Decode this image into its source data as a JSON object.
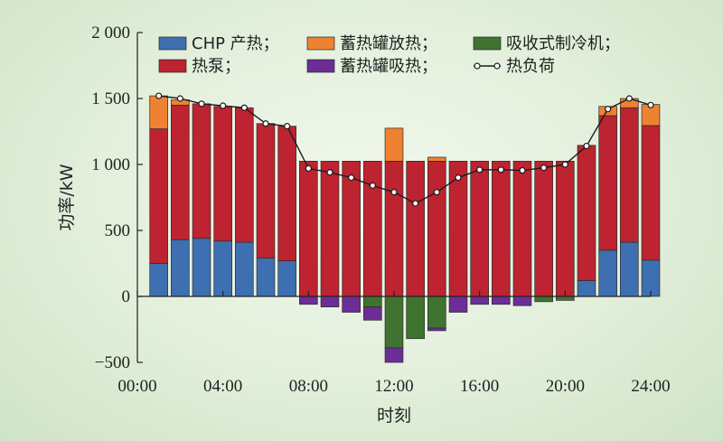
{
  "chart_data": {
    "type": "bar",
    "subtype": "stacked bar with line overlay",
    "xlabel": "时刻",
    "ylabel": "功率/kW",
    "ylim": [
      -500,
      2000
    ],
    "yticks": [
      -500,
      0,
      500,
      1000,
      1500,
      2000
    ],
    "ytick_labels": [
      "−500",
      "0",
      "500",
      "1 000",
      "1 500",
      "2 000"
    ],
    "xlim": [
      0,
      24
    ],
    "xticks": [
      0,
      4,
      8,
      12,
      16,
      20,
      24
    ],
    "xtick_labels": [
      "00:00",
      "04:00",
      "08:00",
      "12:00",
      "16:00",
      "20:00",
      "24:00"
    ],
    "grid": false,
    "legend_position": "top",
    "x": [
      1,
      2,
      3,
      4,
      5,
      6,
      7,
      8,
      9,
      10,
      11,
      12,
      13,
      14,
      15,
      16,
      17,
      18,
      19,
      20,
      21,
      22,
      23,
      24
    ],
    "series": [
      {
        "name": "CHP 产热",
        "color": "#3e6fb0",
        "values": [
          250,
          430,
          440,
          420,
          410,
          290,
          270,
          0,
          0,
          0,
          0,
          0,
          0,
          0,
          0,
          0,
          0,
          0,
          0,
          0,
          120,
          350,
          410,
          275
        ]
      },
      {
        "name": "热泵",
        "color": "#bd2330",
        "values": [
          1020,
          1020,
          1020,
          1020,
          1020,
          1020,
          1020,
          1025,
          1025,
          1025,
          1025,
          1025,
          1025,
          1025,
          1025,
          1025,
          1025,
          1025,
          1025,
          1025,
          1025,
          1020,
          1020,
          1020
        ]
      },
      {
        "name": "蓄热罐放热",
        "color": "#ee8230",
        "values": [
          250,
          40,
          0,
          0,
          0,
          0,
          0,
          0,
          0,
          0,
          0,
          250,
          0,
          30,
          0,
          0,
          0,
          0,
          0,
          0,
          0,
          70,
          70,
          160
        ]
      },
      {
        "name": "吸收式制冷机",
        "color": "#3f7330",
        "values": [
          0,
          0,
          0,
          0,
          0,
          0,
          0,
          0,
          0,
          0,
          -80,
          -390,
          -320,
          -240,
          0,
          0,
          0,
          0,
          -40,
          -30,
          0,
          0,
          0,
          0
        ]
      },
      {
        "name": "蓄热罐吸热",
        "color": "#6c2d96",
        "values": [
          0,
          0,
          0,
          0,
          0,
          0,
          0,
          -60,
          -80,
          -120,
          -100,
          -110,
          0,
          -20,
          -120,
          -60,
          -60,
          -70,
          0,
          0,
          0,
          0,
          0,
          0
        ]
      }
    ],
    "line": {
      "name": "热负荷",
      "color": "#1c1c1c",
      "marker": "circle-open",
      "values": [
        1520,
        1500,
        1460,
        1445,
        1430,
        1310,
        1290,
        970,
        940,
        900,
        840,
        790,
        705,
        790,
        900,
        960,
        960,
        955,
        975,
        1000,
        1140,
        1420,
        1500,
        1450
      ]
    },
    "legend": [
      {
        "series": "CHP 产热",
        "label": "CHP 产热；",
        "kind": "box"
      },
      {
        "series": "蓄热罐放热",
        "label": "蓄热罐放热；",
        "kind": "box"
      },
      {
        "series": "吸收式制冷机",
        "label": "吸收式制冷机；",
        "kind": "box"
      },
      {
        "series": "热泵",
        "label": "热泵；",
        "kind": "box"
      },
      {
        "series": "蓄热罐吸热",
        "label": "蓄热罐吸热；",
        "kind": "box"
      },
      {
        "series": "热负荷",
        "label": "热负荷",
        "kind": "line"
      }
    ]
  }
}
